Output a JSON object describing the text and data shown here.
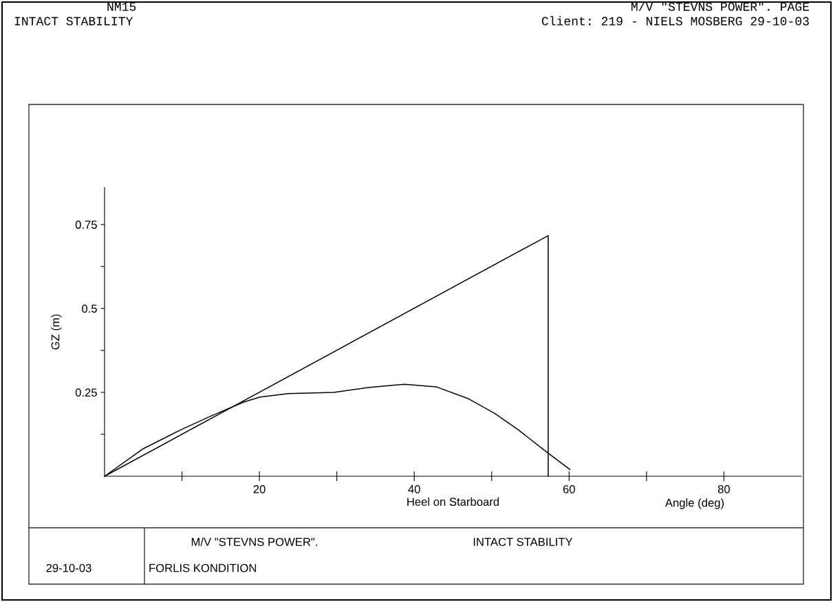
{
  "chart_data": {
    "type": "line",
    "title": "INTACT STABILITY",
    "xlabel": "Heel on Starboard",
    "ylabel": "GZ (m)",
    "annotations": [
      "NM15",
      "M/V \"STEVNS POWER\". PAGE",
      "Client: 219 - NIELS MOSBERG 29-10-03",
      "Angle (deg)",
      "M/V \"STEVNS POWER\".",
      "INTACT STABILITY",
      "29-10-03",
      "FORLIS KONDITION"
    ],
    "series": [
      {
        "color": "#000000",
        "x": [
          0,
          5,
          9.9,
          13.8,
          18,
          20.1,
          23.7,
          29.6,
          34,
          37.6,
          38.8,
          42.9,
          46.9,
          50.4,
          53.4,
          57,
          60.1
        ],
        "values": [
          0,
          0.082,
          0.139,
          0.18,
          0.221,
          0.236,
          0.246,
          0.25,
          0.264,
          0.272,
          0.274,
          0.266,
          0.232,
          0.187,
          0.139,
          0.074,
          0.02
        ]
      },
      {
        "color": "#000000",
        "x": [
          0,
          57.3,
          57.3
        ],
        "values": [
          0,
          0.717,
          0
        ]
      }
    ],
    "xlim": [
      0,
      90
    ],
    "ylim": [
      0,
      0.86
    ],
    "xticks": [
      {
        "value": 10,
        "label": null
      },
      20,
      {
        "value": 30,
        "label": null
      },
      40,
      {
        "value": 50,
        "label": null
      },
      60,
      {
        "value": 70,
        "label": null
      },
      80
    ],
    "yticks": [
      {
        "value": 0.125,
        "label": null
      },
      0.25,
      {
        "value": 0.375,
        "label": null
      },
      0.5,
      {
        "value": 0.625,
        "label": null
      },
      0.75
    ],
    "grid": false,
    "marker": "none",
    "line_style": "solid"
  }
}
